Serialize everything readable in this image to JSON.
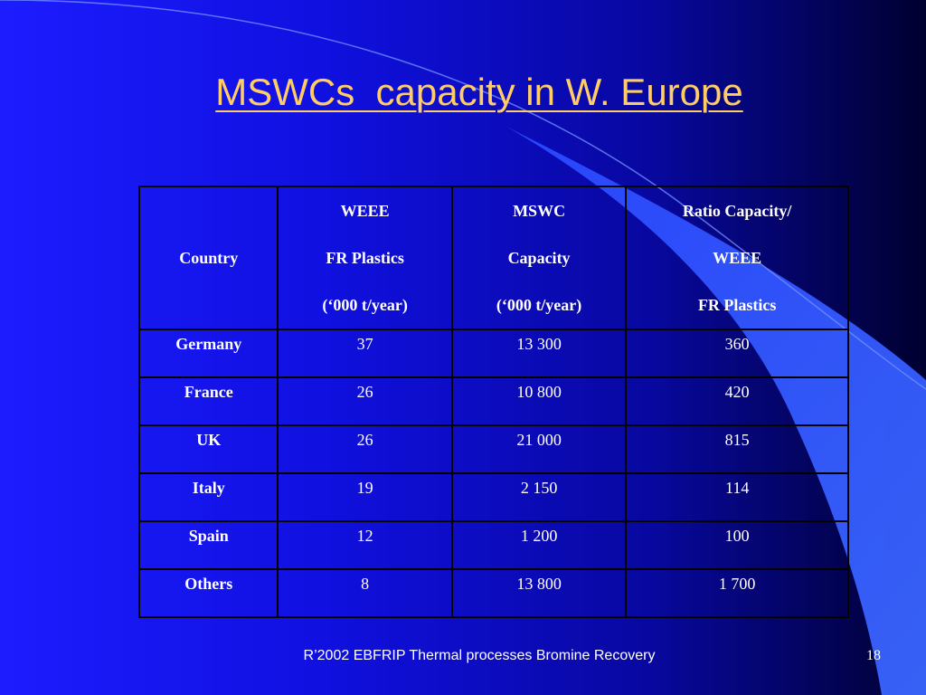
{
  "slide": {
    "title": "MSWCs  capacity in W. Europe",
    "footer": "R’2002 EBFRIP Thermal processes Bromine Recovery",
    "page_number": "18"
  },
  "table": {
    "headers": [
      [
        "Country"
      ],
      [
        "WEEE",
        "FR Plastics",
        "(‘000 t/year)"
      ],
      [
        "MSWC",
        "Capacity",
        "(‘000 t/year)"
      ],
      [
        "Ratio Capacity/",
        "WEEE",
        "FR Plastics"
      ]
    ],
    "rows": [
      [
        "Germany",
        "37",
        "13 300",
        "360"
      ],
      [
        "France",
        "26",
        "10 800",
        "420"
      ],
      [
        "UK",
        "26",
        "21 000",
        "815"
      ],
      [
        "Italy",
        "19",
        "2 150",
        "114"
      ],
      [
        "Spain",
        "12",
        "1 200",
        "100"
      ],
      [
        "Others",
        "8",
        "13 800",
        "1 700"
      ]
    ]
  },
  "colors": {
    "title": "#ffcc66",
    "background_left": "#1c1cff",
    "background_right": "#000030",
    "swoosh": "#3a66ff"
  }
}
